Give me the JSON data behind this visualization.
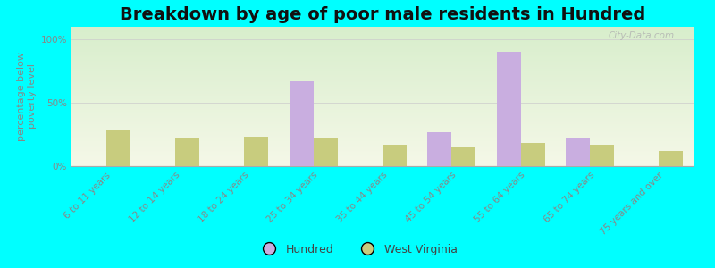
{
  "title": "Breakdown by age of poor male residents in Hundred",
  "categories": [
    "6 to 11 years",
    "12 to 14 years",
    "18 to 24 years",
    "25 to 34 years",
    "35 to 44 years",
    "45 to 54 years",
    "55 to 64 years",
    "65 to 74 years",
    "75 years and over"
  ],
  "hundred_values": [
    0,
    0,
    0,
    67,
    0,
    27,
    90,
    22,
    0
  ],
  "wv_values": [
    29,
    22,
    23,
    22,
    17,
    15,
    18,
    17,
    12
  ],
  "hundred_color": "#c9aee0",
  "wv_color": "#c8cc7e",
  "background_color": "#00ffff",
  "grad_top": "#f5f8e8",
  "grad_bottom": "#d8eecc",
  "ylabel": "percentage below\npoverty level",
  "ylim": [
    0,
    110
  ],
  "yticks": [
    0,
    50,
    100
  ],
  "ytick_labels": [
    "0%",
    "50%",
    "100%"
  ],
  "legend_hundred": "Hundred",
  "legend_wv": "West Virginia",
  "bar_width": 0.35,
  "title_fontsize": 14,
  "axis_label_fontsize": 8,
  "tick_fontsize": 7.5,
  "watermark": "City-Data.com"
}
